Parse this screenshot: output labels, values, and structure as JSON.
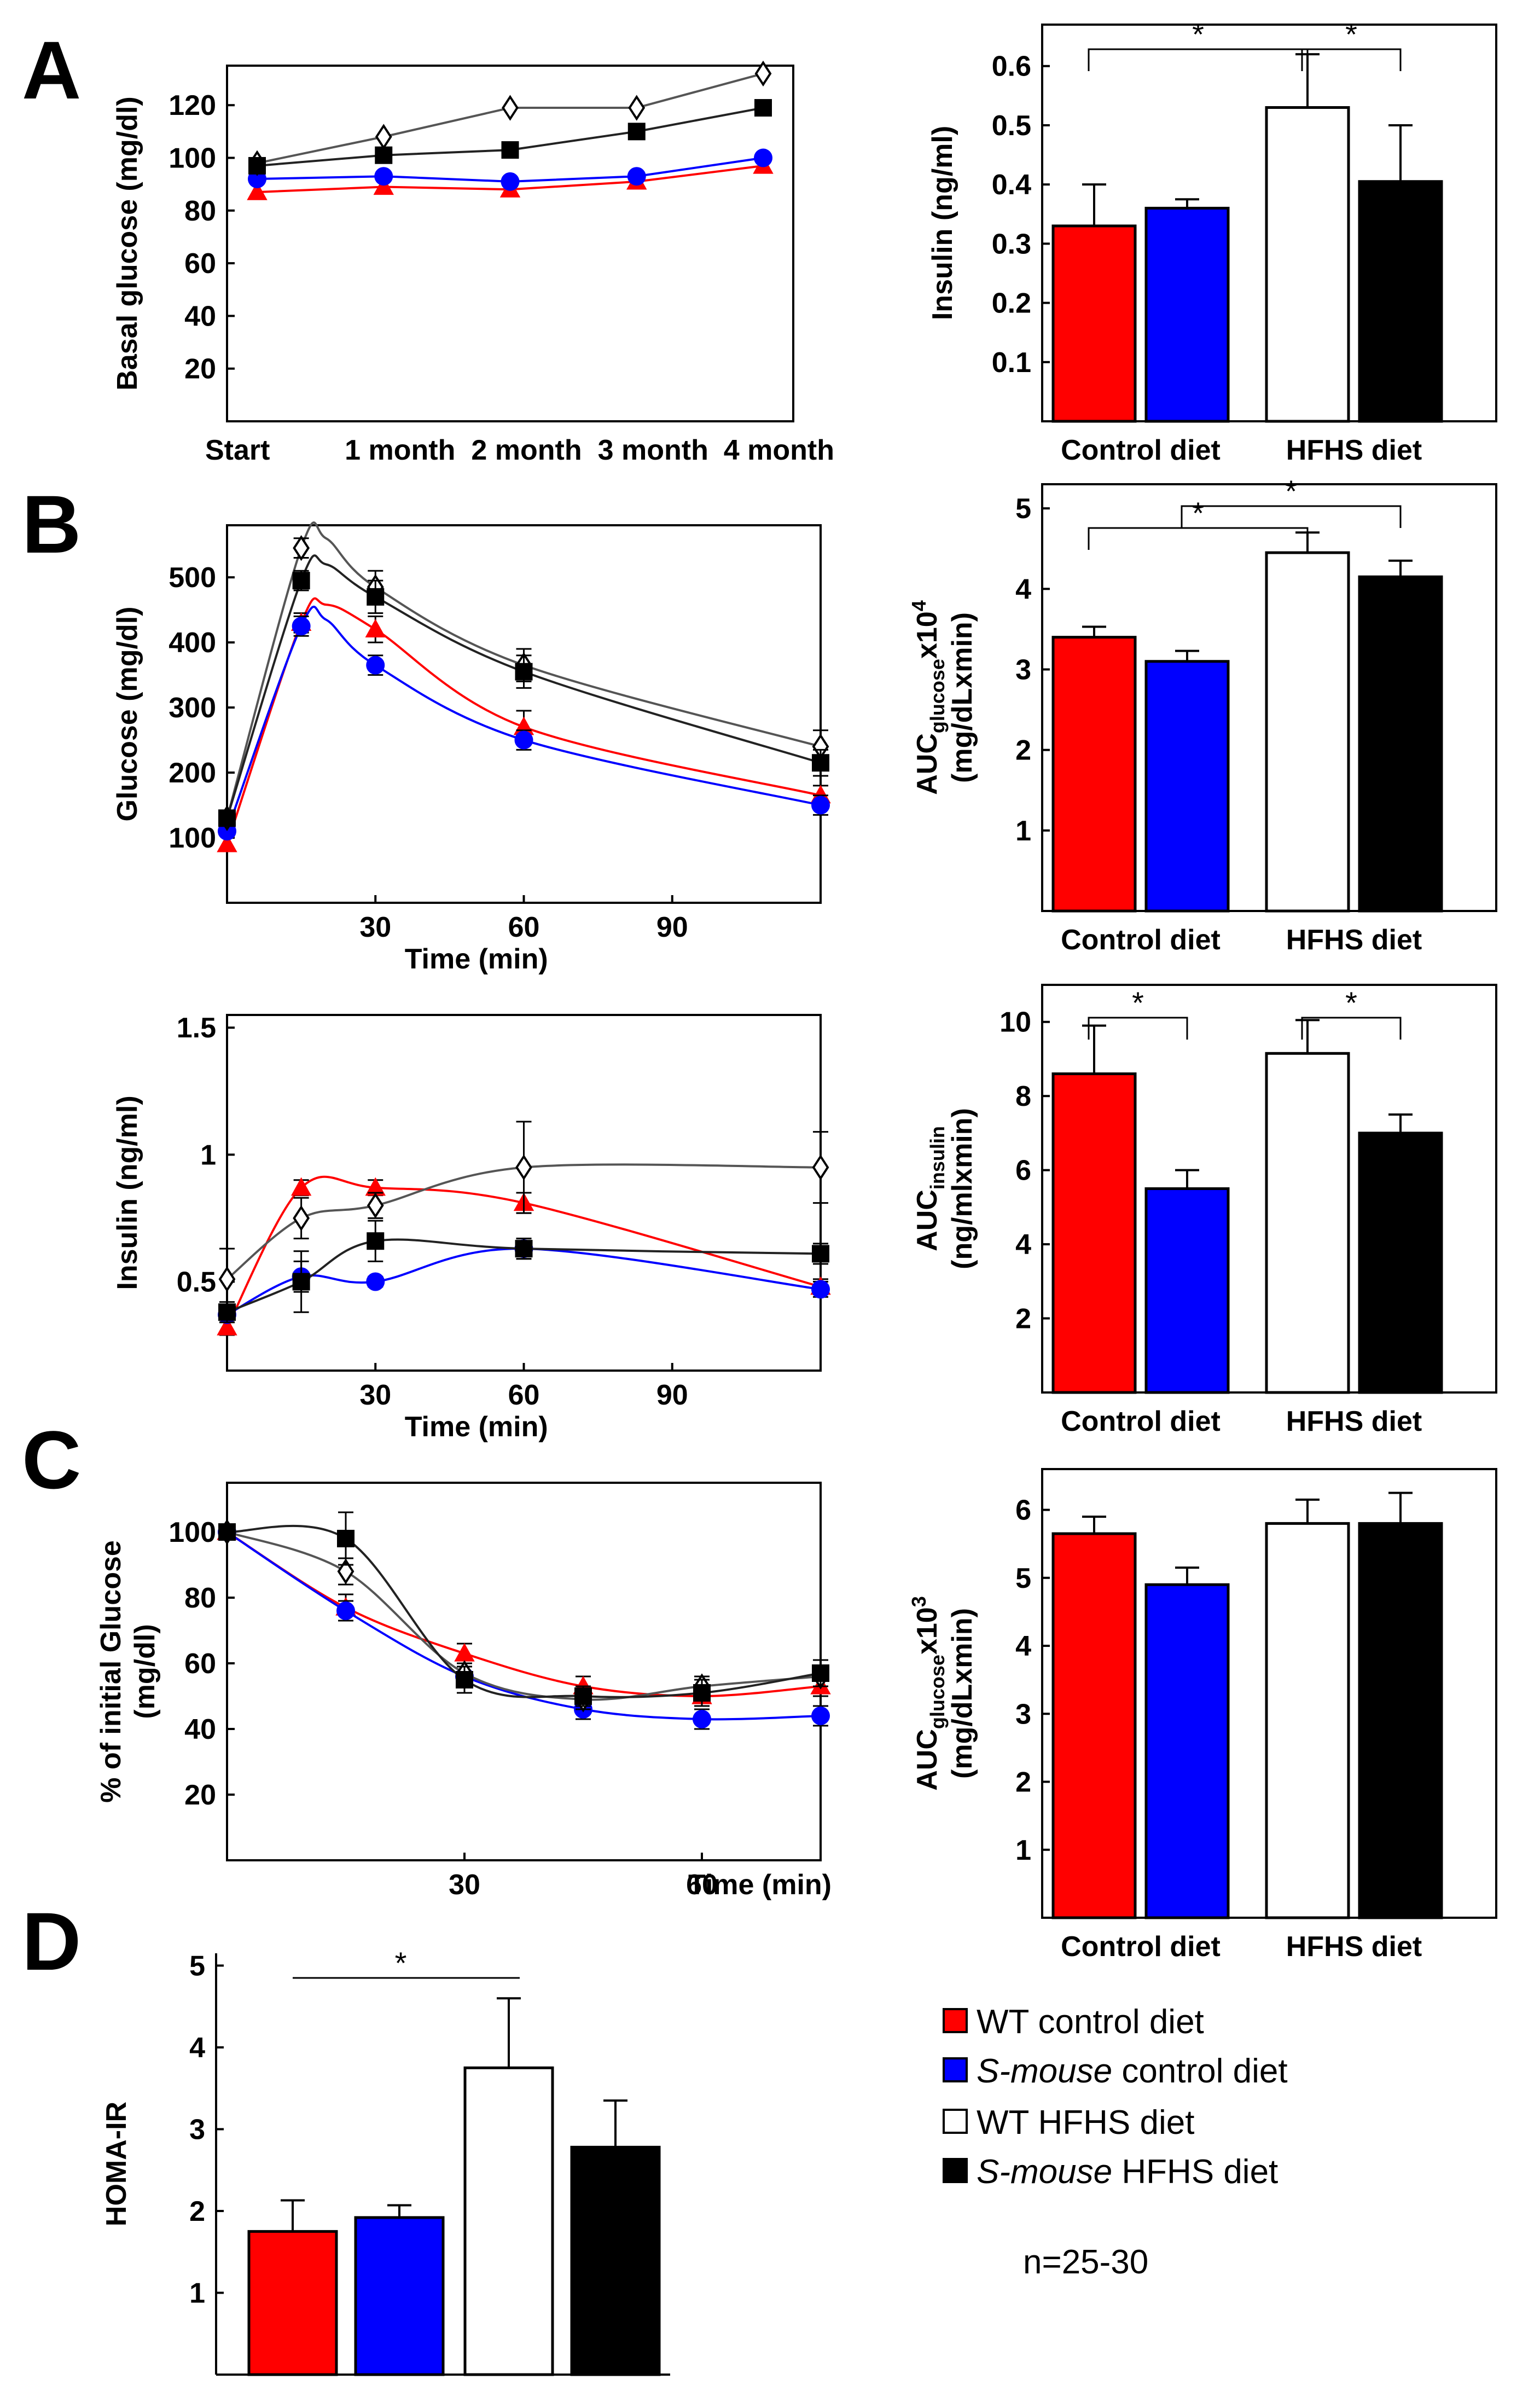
{
  "figure": {
    "colors": {
      "wt_control": "#ff0000",
      "smouse_control": "#0000ff",
      "wt_hfhs": "#ffffff",
      "smouse_hfhs": "#000000",
      "wt_hfhs_line": "#555555",
      "smouse_hfhs_line": "#222222",
      "axis": "#000000"
    },
    "panel_letters": [
      "A",
      "B",
      "C",
      "D"
    ],
    "legend": {
      "items": [
        {
          "prefix": "",
          "italic": "",
          "suffix": "WT control diet",
          "color": "#ff0000",
          "series": "wt_control"
        },
        {
          "prefix": "",
          "italic": "S-mouse",
          "suffix": " control  diet",
          "color": "#0000ff",
          "series": "smouse_control"
        },
        {
          "prefix": "",
          "italic": "",
          "suffix": "WT HFHS diet",
          "color": "#ffffff",
          "series": "wt_hfhs"
        },
        {
          "prefix": "",
          "italic": "S-mouse",
          "suffix": " HFHS diet",
          "color": "#000000",
          "series": "smouse_hfhs"
        }
      ],
      "n_text": "n=25-30"
    }
  },
  "chart_data": [
    {
      "id": "A_line",
      "type": "line",
      "panel": "A",
      "ylabel": "Basal glucose (mg/dl)",
      "xlabel": "",
      "categories": [
        "Start",
        "1 month",
        "2 month",
        "3 month",
        "4 month"
      ],
      "ylim": [
        0,
        135
      ],
      "yticks": [
        20,
        40,
        60,
        80,
        100,
        120
      ],
      "series": [
        {
          "name": "WT control diet",
          "key": "wt_control",
          "marker": "triangle",
          "values": [
            87,
            89,
            88,
            91,
            97
          ]
        },
        {
          "name": "S-mouse control diet",
          "key": "smouse_control",
          "marker": "circle",
          "values": [
            92,
            93,
            91,
            93,
            100
          ]
        },
        {
          "name": "WT HFHS diet",
          "key": "wt_hfhs",
          "marker": "diamond",
          "values": [
            98,
            108,
            119,
            119,
            132
          ]
        },
        {
          "name": "S-mouse HFHS diet",
          "key": "smouse_hfhs",
          "marker": "square",
          "values": [
            97,
            101,
            103,
            110,
            119
          ]
        }
      ]
    },
    {
      "id": "A_bar",
      "type": "bar",
      "panel": "A",
      "ylabel": "Insulin (ng/ml)",
      "groups": [
        "Control diet",
        "HFHS diet"
      ],
      "ylim": [
        0,
        0.67
      ],
      "yticks": [
        0.1,
        0.2,
        0.3,
        0.4,
        0.5,
        0.6
      ],
      "bars": [
        {
          "series": "wt_control",
          "value": 0.33,
          "err": 0.07
        },
        {
          "series": "smouse_control",
          "value": 0.36,
          "err": 0.015
        },
        {
          "series": "wt_hfhs",
          "value": 0.53,
          "err": 0.09
        },
        {
          "series": "smouse_hfhs",
          "value": 0.405,
          "err": 0.095
        }
      ],
      "significance": [
        {
          "from": 0,
          "to": 2,
          "level": 0,
          "label": "*"
        },
        {
          "from": 2,
          "to": 3,
          "level": 0,
          "label": "*"
        }
      ]
    },
    {
      "id": "B_gtt_line",
      "type": "line",
      "panel": "B",
      "ylabel": "Glucose (mg/dl)",
      "xlabel": "Time (min)",
      "xlim": [
        0,
        120
      ],
      "xticks": [
        30,
        60,
        90
      ],
      "ylim": [
        0,
        580
      ],
      "yticks": [
        100,
        200,
        300,
        400,
        500
      ],
      "series": [
        {
          "name": "WT control diet",
          "key": "wt_control",
          "marker": "triangle",
          "x": [
            0,
            15,
            20,
            30,
            60,
            120
          ],
          "values": [
            90,
            430,
            458,
            420,
            270,
            165
          ],
          "err": [
            0,
            15,
            0,
            20,
            25,
            15
          ]
        },
        {
          "name": "S-mouse control diet",
          "key": "smouse_control",
          "marker": "circle",
          "x": [
            0,
            15,
            20,
            30,
            60,
            120
          ],
          "values": [
            110,
            425,
            435,
            365,
            250,
            150
          ],
          "err": [
            0,
            15,
            0,
            15,
            15,
            15
          ]
        },
        {
          "name": "WT HFHS diet",
          "key": "wt_hfhs",
          "marker": "diamond",
          "x": [
            0,
            15,
            20,
            30,
            60,
            120
          ],
          "values": [
            130,
            545,
            560,
            485,
            365,
            240
          ],
          "err": [
            0,
            15,
            0,
            25,
            25,
            25
          ]
        },
        {
          "name": "S-mouse HFHS diet",
          "key": "smouse_hfhs",
          "marker": "square",
          "x": [
            0,
            15,
            20,
            30,
            60,
            120
          ],
          "values": [
            130,
            495,
            520,
            470,
            355,
            215
          ],
          "err": [
            0,
            15,
            0,
            25,
            25,
            20
          ]
        }
      ]
    },
    {
      "id": "B_gtt_auc",
      "type": "bar",
      "panel": "B",
      "ylabel_main": "AUC",
      "ylabel_sub": "glucose",
      "ylabel_rest": "x10",
      "ylabel_sup": "4",
      "ylabel_line2": "(mg/dLxmin)",
      "groups": [
        "Control diet",
        "HFHS diet"
      ],
      "ylim": [
        0,
        5.3
      ],
      "yticks": [
        1,
        2,
        3,
        4,
        5
      ],
      "bars": [
        {
          "series": "wt_control",
          "value": 3.4,
          "err": 0.13
        },
        {
          "series": "smouse_control",
          "value": 3.1,
          "err": 0.13
        },
        {
          "series": "wt_hfhs",
          "value": 4.45,
          "err": 0.25
        },
        {
          "series": "smouse_hfhs",
          "value": 4.15,
          "err": 0.2
        }
      ],
      "significance": [
        {
          "from": 0,
          "to": 2,
          "level": 0,
          "label": "*"
        },
        {
          "from": 1,
          "to": 3,
          "level": 1,
          "label": "*"
        }
      ]
    },
    {
      "id": "B_ins_line",
      "type": "line",
      "panel": "B",
      "ylabel": "Insulin (ng/ml)",
      "xlabel": "Time (min)",
      "xlim": [
        0,
        120
      ],
      "xticks": [
        30,
        60,
        90
      ],
      "ylim": [
        0.15,
        1.55
      ],
      "yticks": [
        0.5,
        1,
        1.5
      ],
      "ytick_labels": [
        "0.5",
        "1",
        "1.5"
      ],
      "series": [
        {
          "name": "WT control diet",
          "key": "wt_control",
          "marker": "triangle",
          "x": [
            0,
            15,
            30,
            60,
            120
          ],
          "values": [
            0.32,
            0.87,
            0.87,
            0.81,
            0.48
          ],
          "err": [
            0.03,
            0.03,
            0.03,
            0.04,
            0.03
          ]
        },
        {
          "name": "S-mouse control diet",
          "key": "smouse_control",
          "marker": "circle",
          "x": [
            0,
            15,
            30,
            60,
            120
          ],
          "values": [
            0.37,
            0.52,
            0.5,
            0.63,
            0.47
          ],
          "err": [
            0.03,
            0.06,
            0.02,
            0.04,
            0.03
          ]
        },
        {
          "name": "WT HFHS diet",
          "key": "wt_hfhs",
          "marker": "diamond",
          "x": [
            0,
            15,
            30,
            60,
            120
          ],
          "values": [
            0.51,
            0.75,
            0.8,
            0.95,
            0.95
          ],
          "err": [
            0.12,
            0.08,
            0.05,
            0.18,
            0.14
          ]
        },
        {
          "name": "S-mouse HFHS diet",
          "key": "smouse_hfhs",
          "marker": "square",
          "x": [
            0,
            15,
            30,
            60,
            120
          ],
          "values": [
            0.38,
            0.5,
            0.66,
            0.63,
            0.61
          ],
          "err": [
            0.04,
            0.12,
            0.08,
            0.04,
            0.04
          ]
        }
      ]
    },
    {
      "id": "B_ins_auc",
      "type": "bar",
      "panel": "B",
      "ylabel_main": "AUC",
      "ylabel_sub": "insulin",
      "ylabel_rest": "",
      "ylabel_sup": "",
      "ylabel_line2": "(ng/mlxmin)",
      "groups": [
        "Control diet",
        "HFHS diet"
      ],
      "ylim": [
        0,
        11
      ],
      "yticks": [
        2,
        4,
        6,
        8,
        10
      ],
      "bars": [
        {
          "series": "wt_control",
          "value": 8.6,
          "err": 1.3
        },
        {
          "series": "smouse_control",
          "value": 5.5,
          "err": 0.5
        },
        {
          "series": "wt_hfhs",
          "value": 9.15,
          "err": 0.9
        },
        {
          "series": "smouse_hfhs",
          "value": 7.0,
          "err": 0.5
        }
      ],
      "significance": [
        {
          "from": 0,
          "to": 1,
          "level": 0,
          "label": "*"
        },
        {
          "from": 2,
          "to": 3,
          "level": 0,
          "label": "*"
        }
      ]
    },
    {
      "id": "C_itt_line",
      "type": "line",
      "panel": "C",
      "ylabel": "% of initial Glucose (mg/dl)",
      "ylabel_line1": "% of initial Glucose",
      "ylabel_line2": "(mg/dl)",
      "xlabel": "Time (min)",
      "xlim": [
        0,
        75
      ],
      "xticks": [
        30,
        60
      ],
      "ylim": [
        0,
        115
      ],
      "yticks": [
        20,
        40,
        60,
        80,
        100
      ],
      "series": [
        {
          "name": "WT control diet",
          "key": "wt_control",
          "marker": "triangle",
          "x": [
            0,
            15,
            30,
            45,
            60,
            75
          ],
          "values": [
            100,
            77,
            63,
            53,
            50,
            53
          ],
          "err": [
            0,
            4,
            3,
            3,
            3,
            3
          ]
        },
        {
          "name": "S-mouse control diet",
          "key": "smouse_control",
          "marker": "circle",
          "x": [
            0,
            15,
            30,
            45,
            60,
            75
          ],
          "values": [
            100,
            76,
            56,
            46,
            43,
            44
          ],
          "err": [
            0,
            3,
            3,
            3,
            3,
            3
          ]
        },
        {
          "name": "WT HFHS diet",
          "key": "wt_hfhs",
          "marker": "diamond",
          "x": [
            0,
            15,
            30,
            45,
            60,
            75
          ],
          "values": [
            100,
            88,
            57,
            49,
            53,
            56
          ],
          "err": [
            0,
            4,
            3,
            3,
            3,
            3
          ]
        },
        {
          "name": "S-mouse HFHS diet",
          "key": "smouse_hfhs",
          "marker": "square",
          "x": [
            0,
            15,
            30,
            45,
            60,
            75
          ],
          "values": [
            100,
            98,
            55,
            50,
            51,
            57
          ],
          "err": [
            0,
            8,
            4,
            3,
            4,
            4
          ]
        }
      ]
    },
    {
      "id": "C_itt_auc",
      "type": "bar",
      "panel": "C",
      "ylabel_main": "AUC",
      "ylabel_sub": "glucose",
      "ylabel_rest": "x10",
      "ylabel_sup": "3",
      "ylabel_line2": "(mg/dLxmin)",
      "groups": [
        "Control diet",
        "HFHS diet"
      ],
      "ylim": [
        0,
        6.6
      ],
      "yticks": [
        1,
        2,
        3,
        4,
        5,
        6
      ],
      "bars": [
        {
          "series": "wt_control",
          "value": 5.65,
          "err": 0.25
        },
        {
          "series": "smouse_control",
          "value": 4.9,
          "err": 0.25
        },
        {
          "series": "wt_hfhs",
          "value": 5.8,
          "err": 0.35
        },
        {
          "series": "smouse_hfhs",
          "value": 5.8,
          "err": 0.45
        }
      ],
      "significance": []
    },
    {
      "id": "D_homa",
      "type": "bar",
      "panel": "D",
      "ylabel": "HOMA-IR",
      "groups": [],
      "ylim": [
        0,
        5.15
      ],
      "yticks": [
        1,
        2,
        3,
        4,
        5
      ],
      "bars": [
        {
          "series": "wt_control",
          "value": 1.75,
          "err": 0.38
        },
        {
          "series": "smouse_control",
          "value": 1.92,
          "err": 0.15
        },
        {
          "series": "wt_hfhs",
          "value": 3.75,
          "err": 0.85
        },
        {
          "series": "smouse_hfhs",
          "value": 2.78,
          "err": 0.57
        }
      ],
      "significance": [
        {
          "from": 0,
          "to": 2,
          "level": 0,
          "label": "*",
          "style": "line"
        }
      ]
    }
  ]
}
